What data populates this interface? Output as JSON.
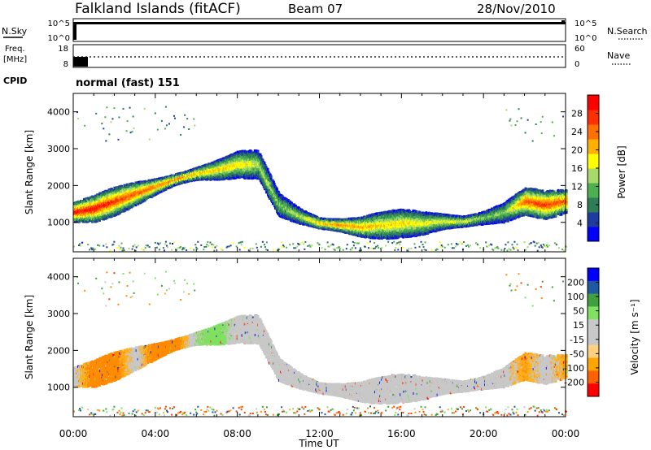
{
  "header": {
    "station": "Falkland Islands (fitACF)",
    "beam": "Beam 07",
    "date": "28/Nov/2010"
  },
  "nsky_panel": {
    "label": "N.Sky",
    "right_label": "N.Search",
    "left_ticks": [
      "10^5",
      "10^0"
    ],
    "right_ticks": [
      "10^5",
      "10^0"
    ]
  },
  "freq_panel": {
    "label_line1": "Freq.",
    "label_line2": "[MHz]",
    "right_label": "Nave",
    "left_ticks": [
      "18",
      "8"
    ],
    "right_ticks": [
      "60",
      "0"
    ]
  },
  "cpid": {
    "label": "CPID",
    "value": "normal (fast) 151"
  },
  "colors": {
    "power_scale": [
      "#0000ff",
      "#1e3ca0",
      "#2e7d57",
      "#4caf50",
      "#a6d96a",
      "#ffff00",
      "#ffb000",
      "#ff7000",
      "#ff3000",
      "#ff0000"
    ],
    "velocity_scale": [
      "#ff0000",
      "#ff6000",
      "#ffa500",
      "#ffd080",
      "#c8c8c8",
      "#c8c8c8",
      "#80e060",
      "#40a040",
      "#1e5aa0",
      "#0000ff"
    ],
    "ground_scatter": "#c8c8c8"
  },
  "chart_data": [
    {
      "type": "heatmap",
      "panel": "power",
      "ylabel": "Slant Range [km]",
      "ylim": [
        200,
        4500
      ],
      "yticks": [
        1000,
        2000,
        3000,
        4000
      ],
      "xlim": [
        0,
        24
      ],
      "colorbar": {
        "label": "Power [dB]",
        "range": [
          0,
          32
        ],
        "ticks": [
          4,
          8,
          12,
          16,
          20,
          24,
          28
        ]
      },
      "x": [
        0,
        1,
        2,
        3,
        4,
        5,
        6,
        7,
        8,
        9,
        10,
        11,
        12,
        13,
        14,
        15,
        16,
        17,
        18,
        19,
        20,
        21,
        22,
        23,
        24
      ],
      "main_band_center_km": [
        1300,
        1400,
        1600,
        1800,
        2000,
        2200,
        2350,
        2450,
        2600,
        2600,
        1500,
        1200,
        1000,
        950,
        900,
        950,
        1000,
        1000,
        1050,
        1050,
        1150,
        1300,
        1600,
        1500,
        1600
      ],
      "main_band_peak_db": [
        30,
        30,
        28,
        26,
        25,
        24,
        22,
        20,
        20,
        16,
        14,
        16,
        22,
        24,
        22,
        20,
        20,
        18,
        18,
        18,
        14,
        14,
        26,
        28,
        26
      ]
    },
    {
      "type": "heatmap",
      "panel": "velocity",
      "ylabel": "Slant Range [km]",
      "xlabel": "Time UT",
      "ylim": [
        200,
        4500
      ],
      "yticks": [
        1000,
        2000,
        3000,
        4000
      ],
      "xlim": [
        0,
        24
      ],
      "xticks": [
        "00:00",
        "04:00",
        "08:00",
        "12:00",
        "16:00",
        "20:00",
        "00:00"
      ],
      "colorbar": {
        "label": "Velocity [m s⁻¹]",
        "ticks": [
          "200",
          "100",
          "50",
          "15",
          "-15",
          "-50",
          "-100",
          "-200"
        ]
      },
      "x": [
        0,
        1,
        2,
        3,
        4,
        5,
        6,
        7,
        8,
        9,
        10,
        11,
        12,
        13,
        14,
        15,
        16,
        17,
        18,
        19,
        20,
        21,
        22,
        23,
        24
      ],
      "band_center_km": [
        1300,
        1400,
        1600,
        1800,
        2000,
        2200,
        2350,
        2450,
        2600,
        2600,
        1500,
        1200,
        1000,
        950,
        900,
        950,
        1000,
        1000,
        1050,
        1050,
        1150,
        1300,
        1600,
        1500,
        1600
      ],
      "dominant_velocity_mps": [
        0,
        -50,
        -50,
        0,
        -50,
        -50,
        15,
        30,
        0,
        0,
        0,
        0,
        0,
        0,
        0,
        0,
        0,
        0,
        0,
        0,
        0,
        0,
        -30,
        0,
        -30
      ]
    }
  ]
}
